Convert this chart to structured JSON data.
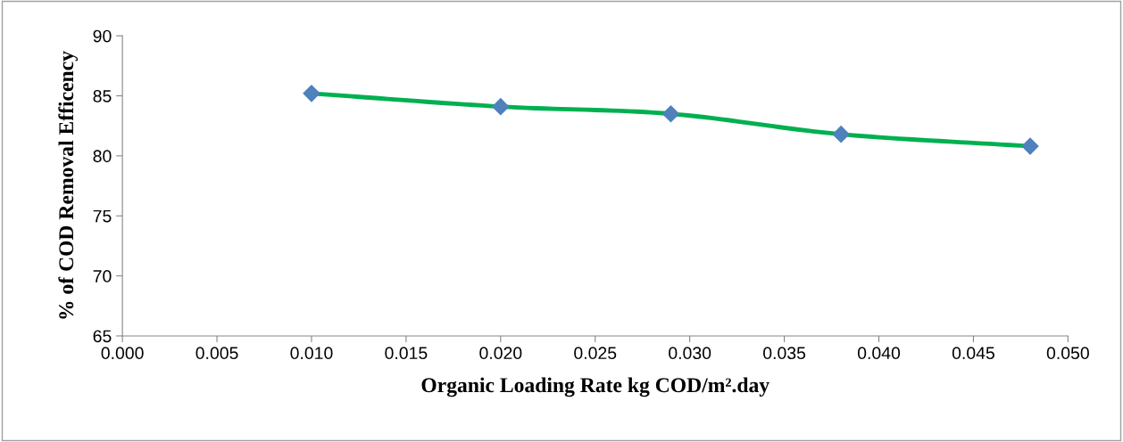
{
  "chart_data": {
    "type": "line",
    "xlabel": "Organic Loading Rate kg COD/m².day",
    "ylabel": "% of COD Removal Efficency",
    "x": [
      0.01,
      0.02,
      0.029,
      0.038,
      0.048
    ],
    "series": [
      {
        "color": "#00b050",
        "colors": [
          "#4f81bd",
          "#4f81bd",
          "#4f81bd",
          "#4f81bd",
          "#4f81bd"
        ],
        "values": [
          85.2,
          84.1,
          83.5,
          81.8,
          80.8
        ]
      }
    ],
    "marker": "diamond",
    "line_style": "solid",
    "grid": false,
    "legend": false,
    "xlim": [
      0.0,
      0.05
    ],
    "xticks": [
      {
        "value": 0.0,
        "label": "0.000"
      },
      {
        "value": 0.005,
        "label": "0.005"
      },
      {
        "value": 0.01,
        "label": "0.010"
      },
      {
        "value": 0.015,
        "label": "0.015"
      },
      {
        "value": 0.02,
        "label": "0.020"
      },
      {
        "value": 0.025,
        "label": "0.025"
      },
      {
        "value": 0.03,
        "label": "0.030"
      },
      {
        "value": 0.035,
        "label": "0.035"
      },
      {
        "value": 0.04,
        "label": "0.040"
      },
      {
        "value": 0.045,
        "label": "0.045"
      },
      {
        "value": 0.05,
        "label": "0.050"
      }
    ],
    "ylim": [
      65,
      90
    ],
    "yticks": [
      65,
      70,
      75,
      80,
      85,
      90
    ]
  }
}
